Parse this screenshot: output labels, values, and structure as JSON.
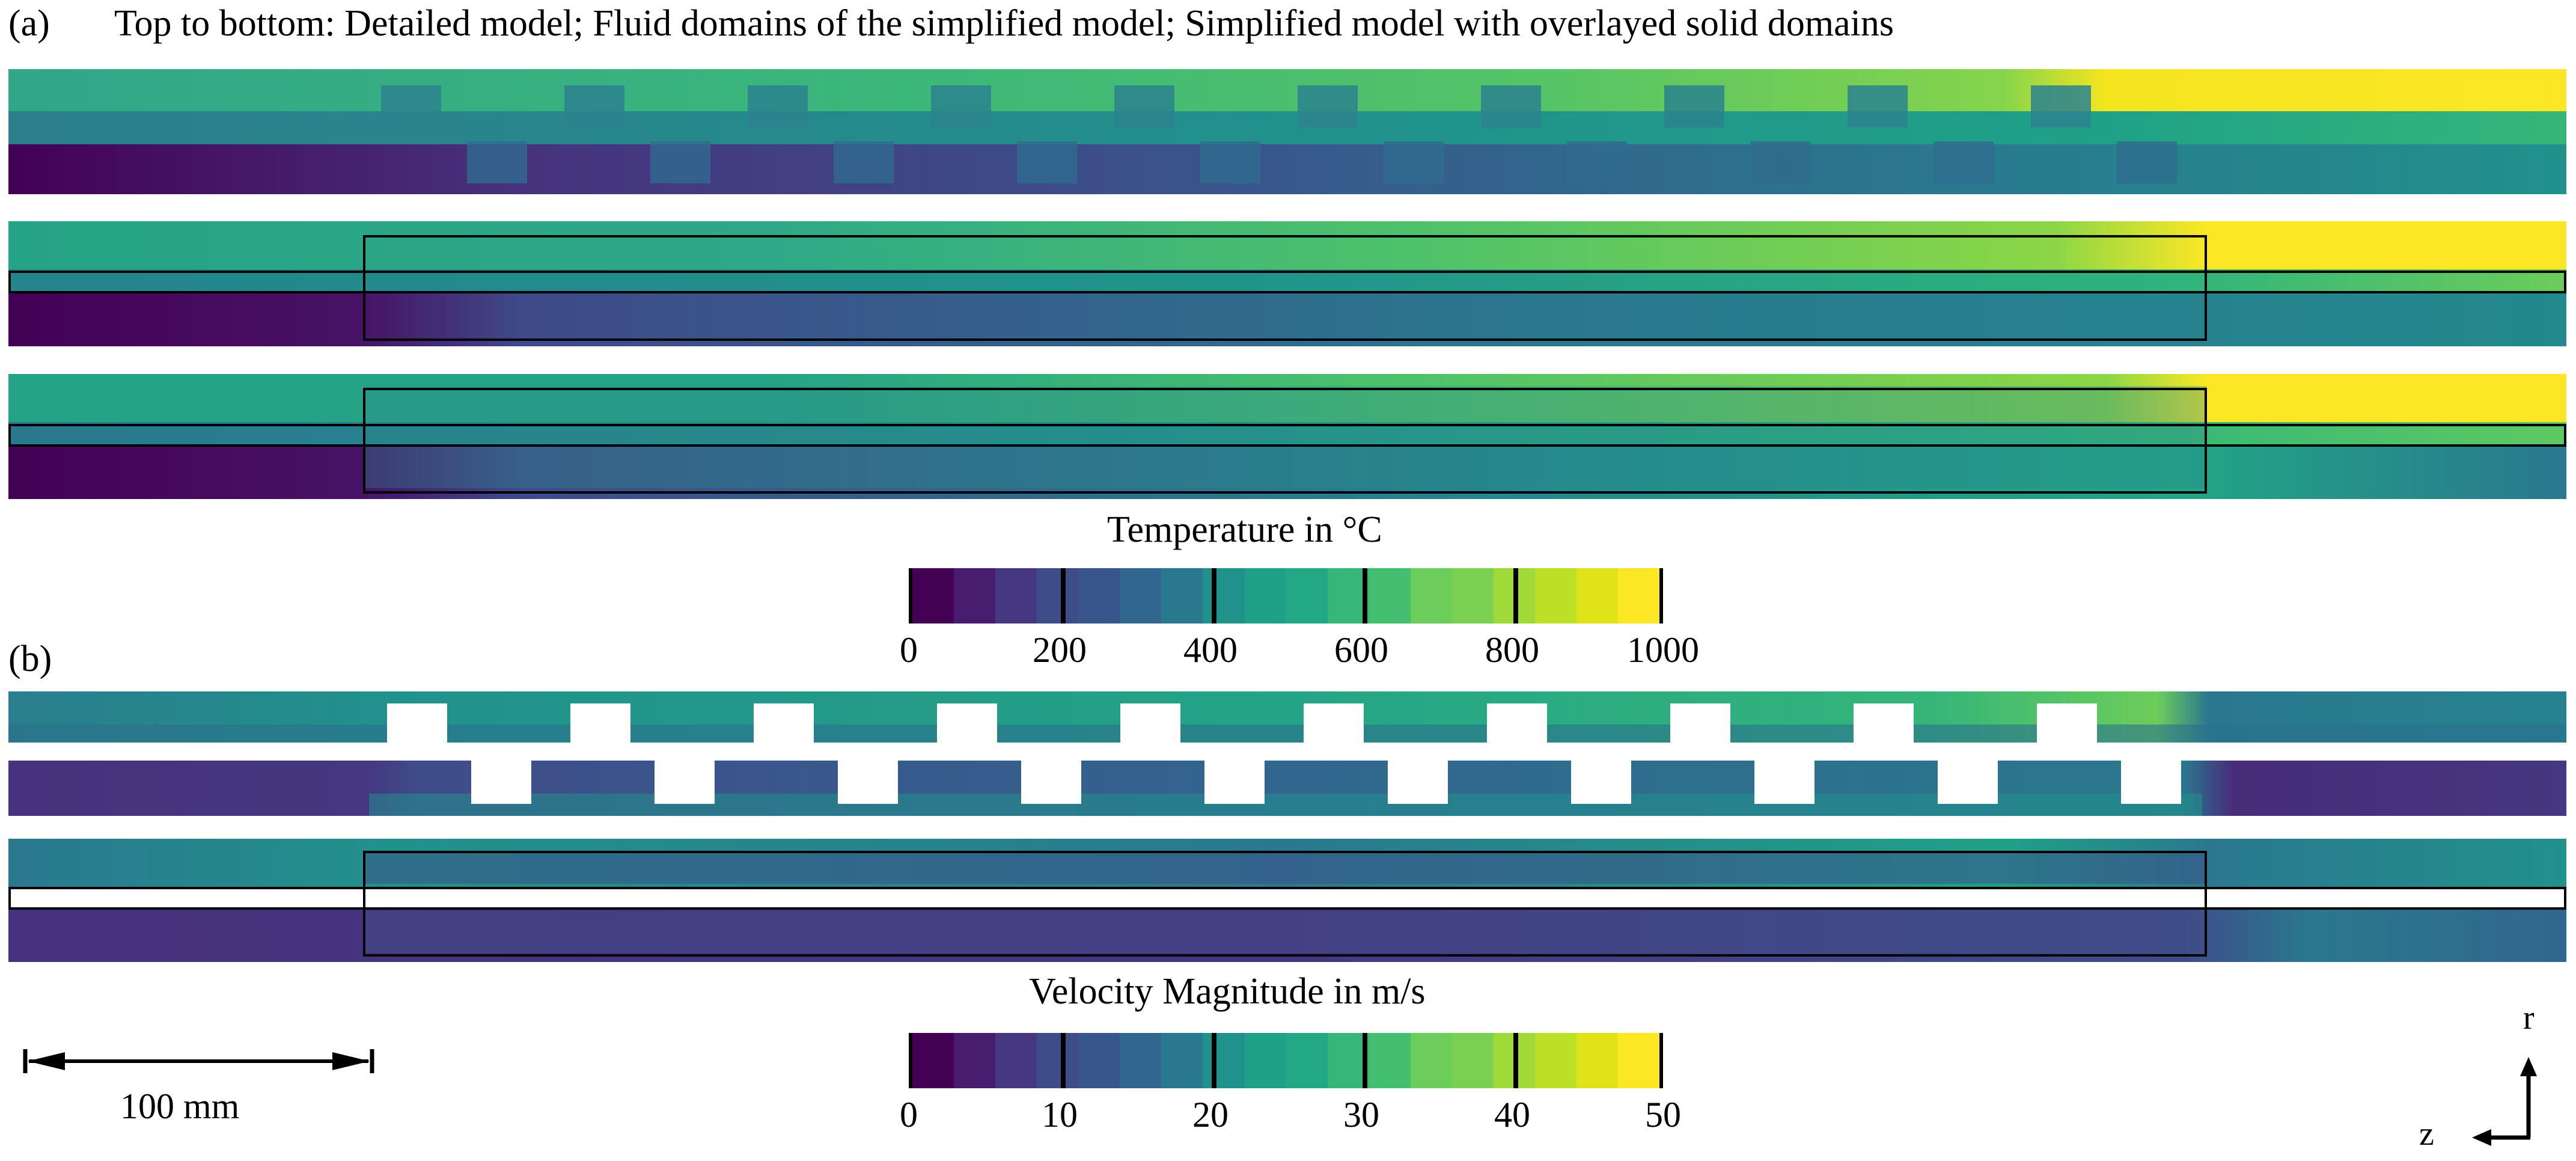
{
  "panel_a": {
    "label": "(a)",
    "caption": "Top to bottom: Detailed model; Fluid domains of the simplified model; Simplified model with overlayed solid domains"
  },
  "temperature_colorbar": {
    "title": "Temperature in °C",
    "ticks": [
      "0",
      "200",
      "400",
      "600",
      "800",
      "1000"
    ],
    "range": [
      0,
      1000
    ]
  },
  "panel_b": {
    "label": "(b)"
  },
  "velocity_colorbar": {
    "title": "Velocity Magnitude in m/s",
    "ticks": [
      "0",
      "10",
      "20",
      "30",
      "40",
      "50"
    ],
    "range": [
      0,
      50
    ]
  },
  "scale_bar": {
    "label": "100 mm"
  },
  "axes": {
    "r_label": "r",
    "z_label": "z"
  },
  "colormap": [
    "#440154",
    "#481c6e",
    "#453781",
    "#3f4c8a",
    "#39568c",
    "#31668e",
    "#2a788e",
    "#21918c",
    "#1fa187",
    "#22a884",
    "#35b779",
    "#44bf70",
    "#6ccd5a",
    "#7ad151",
    "#a0da39",
    "#bddf26",
    "#dfe318",
    "#fde725"
  ]
}
